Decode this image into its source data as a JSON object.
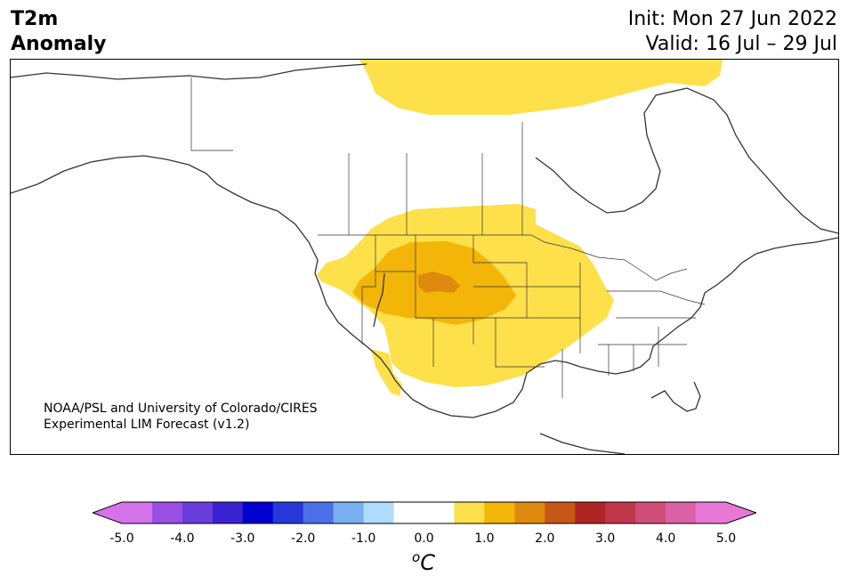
{
  "title": {
    "left_line1": "T2m",
    "left_line2": "Anomaly",
    "right_line1": "Init: Mon 27 Jun 2022",
    "right_line2": "Valid: 16 Jul – 29 Jul"
  },
  "credit": {
    "line1": "NOAA/PSL and University of Colorado/CIRES",
    "line2": "Experimental LIM Forecast (v1.2)"
  },
  "colorbar": {
    "unit_base": "C",
    "unit_sup": "o",
    "ticks": [
      "-5.0",
      "-4.0",
      "-3.0",
      "-2.0",
      "-1.0",
      "0.0",
      "1.0",
      "2.0",
      "3.0",
      "4.0",
      "5.0"
    ],
    "colors": [
      "#d672ea",
      "#9b4fe2",
      "#6a3ddd",
      "#3a22d3",
      "#0000cf",
      "#2638da",
      "#4c6fe6",
      "#78b0f2",
      "#aedcfa",
      "#ffffff",
      "#ffffff",
      "#fde04a",
      "#f2b508",
      "#de8a0e",
      "#c65716",
      "#ad2525",
      "#c0364b",
      "#cf4e78",
      "#dc62a8",
      "#e878d6"
    ],
    "under_color": "#d672ea",
    "over_color": "#e878d6"
  },
  "map": {
    "anomaly_colors": {
      "light": "#fde04a",
      "medium": "#f2b508",
      "dark": "#de8a0e"
    }
  }
}
